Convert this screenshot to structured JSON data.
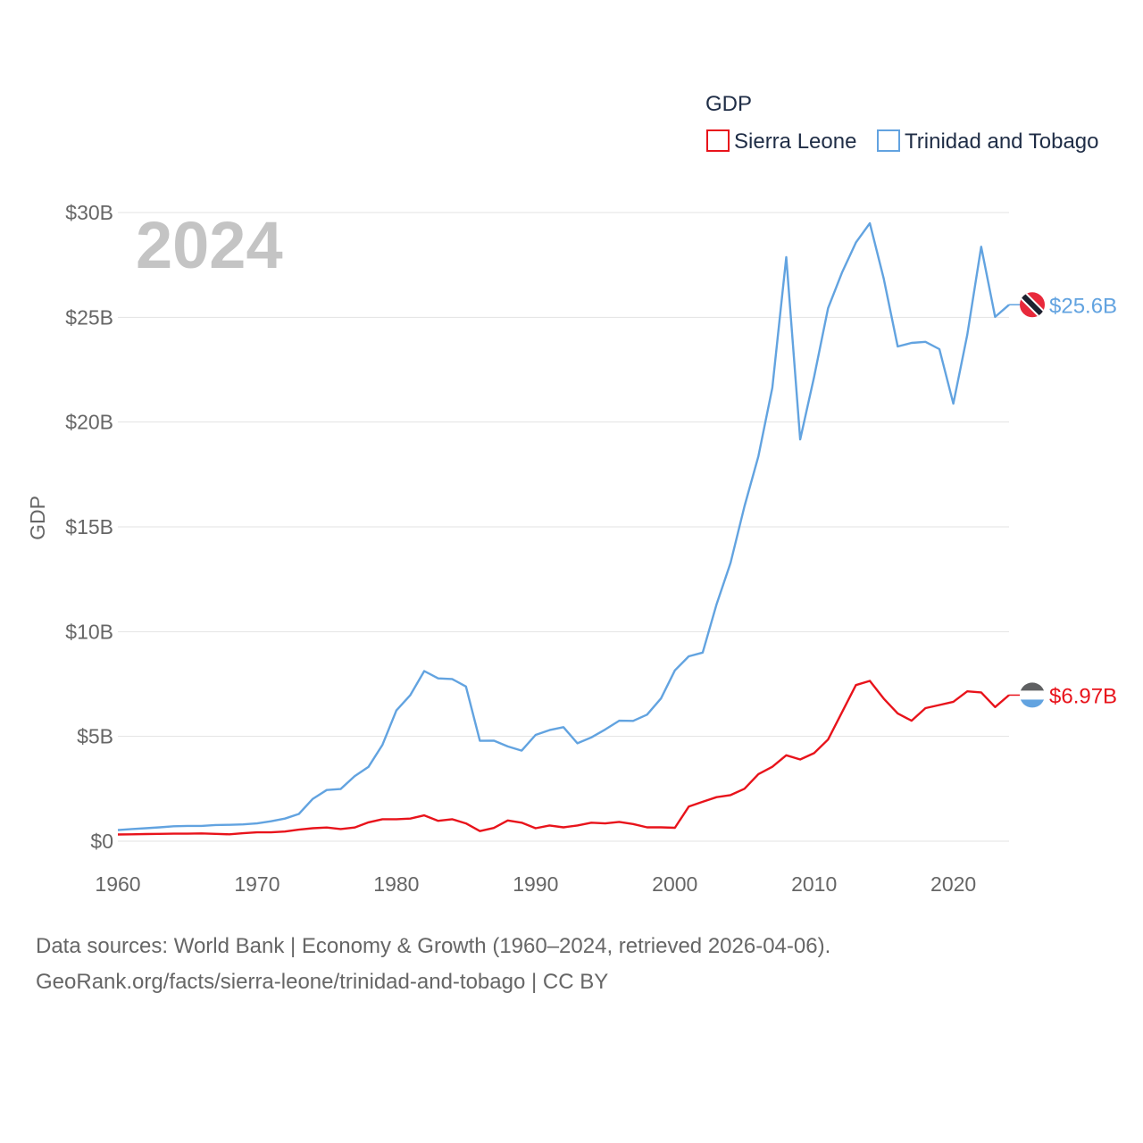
{
  "chart_data": {
    "type": "line",
    "legend_title": "GDP",
    "year_label": "2024",
    "ylabel": "GDP",
    "ylim": [
      0,
      30
    ],
    "xlim": [
      1960,
      2024
    ],
    "x_ticks": [
      1960,
      1970,
      1980,
      1990,
      2000,
      2010,
      2020
    ],
    "x_tick_labels": [
      "1960",
      "1970",
      "1980",
      "1990",
      "2000",
      "2010",
      "2020"
    ],
    "y_ticks": [
      0,
      5,
      10,
      15,
      20,
      25,
      30
    ],
    "y_tick_labels": [
      "$0",
      "$5B",
      "$10B",
      "$15B",
      "$20B",
      "$25B",
      "$30B"
    ],
    "value_unit": "billion USD",
    "x": [
      1960,
      1961,
      1962,
      1963,
      1964,
      1965,
      1966,
      1967,
      1968,
      1969,
      1970,
      1971,
      1972,
      1973,
      1974,
      1975,
      1976,
      1977,
      1978,
      1979,
      1980,
      1981,
      1982,
      1983,
      1984,
      1985,
      1986,
      1987,
      1988,
      1989,
      1990,
      1991,
      1992,
      1993,
      1994,
      1995,
      1996,
      1997,
      1998,
      1999,
      2000,
      2001,
      2002,
      2003,
      2004,
      2005,
      2006,
      2007,
      2008,
      2009,
      2010,
      2011,
      2012,
      2013,
      2014,
      2015,
      2016,
      2017,
      2018,
      2019,
      2020,
      2021,
      2022,
      2023,
      2024
    ],
    "series": [
      {
        "name": "Sierra Leone",
        "color": "#e8131b",
        "end_label": "$6.97B",
        "flag": "sierra-leone-flag-icon",
        "values": [
          0.32,
          0.33,
          0.34,
          0.35,
          0.36,
          0.36,
          0.37,
          0.35,
          0.33,
          0.38,
          0.42,
          0.42,
          0.46,
          0.55,
          0.62,
          0.65,
          0.58,
          0.65,
          0.9,
          1.05,
          1.05,
          1.08,
          1.23,
          0.97,
          1.05,
          0.85,
          0.48,
          0.63,
          0.99,
          0.88,
          0.62,
          0.75,
          0.66,
          0.75,
          0.88,
          0.85,
          0.92,
          0.82,
          0.66,
          0.66,
          0.64,
          1.65,
          1.88,
          2.1,
          2.2,
          2.5,
          3.2,
          3.55,
          4.1,
          3.9,
          4.2,
          4.85,
          6.15,
          7.45,
          7.65,
          6.8,
          6.1,
          5.75,
          6.35,
          6.5,
          6.65,
          7.15,
          7.1,
          6.4,
          6.97
        ]
      },
      {
        "name": "Trinidad and Tobago",
        "color": "#62a3e0",
        "end_label": "$25.6B",
        "flag": "trinidad-and-tobago-flag-icon",
        "values": [
          0.53,
          0.58,
          0.62,
          0.66,
          0.71,
          0.73,
          0.73,
          0.77,
          0.78,
          0.8,
          0.85,
          0.95,
          1.08,
          1.3,
          2.02,
          2.44,
          2.49,
          3.1,
          3.55,
          4.6,
          6.24,
          6.97,
          8.12,
          7.77,
          7.74,
          7.38,
          4.79,
          4.8,
          4.52,
          4.32,
          5.07,
          5.3,
          5.44,
          4.67,
          4.95,
          5.33,
          5.75,
          5.74,
          6.04,
          6.81,
          8.15,
          8.82,
          9.0,
          11.31,
          13.28,
          15.98,
          18.37,
          21.64,
          27.87,
          19.17,
          22.16,
          25.43,
          27.13,
          28.57,
          29.49,
          26.84,
          23.61,
          23.78,
          23.83,
          23.48,
          20.88,
          24.16,
          28.37,
          25.02,
          25.6
        ]
      }
    ]
  },
  "footer": {
    "line1": "Data sources: World Bank | Economy & Growth (1960–2024, retrieved 2026-04-06).",
    "line2": "GeoRank.org/facts/sierra-leone/trinidad-and-tobago | CC BY"
  }
}
